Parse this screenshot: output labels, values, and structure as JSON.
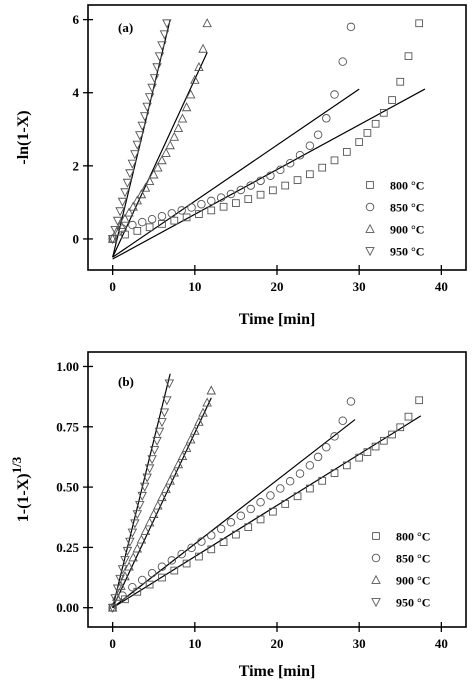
{
  "chart_data": [
    {
      "type": "scatter",
      "panel": "(a)",
      "xlabel": "Time [min]",
      "ylabel": "-ln(1-X)",
      "xlim": [
        -3,
        43
      ],
      "ylim": [
        -0.85,
        6.4
      ],
      "xticks": [
        "0",
        "10",
        "20",
        "30",
        "40"
      ],
      "yticks": [
        "0",
        "2",
        "4",
        "6"
      ],
      "xtick_values": [
        0,
        10,
        20,
        30,
        40
      ],
      "ytick_values": [
        0,
        2,
        4,
        6
      ],
      "legend_position": "bottom-right",
      "series": [
        {
          "name": "800 °C",
          "marker": "square",
          "x": [
            0,
            1.5,
            3,
            4.5,
            6,
            7.5,
            9,
            10.5,
            12,
            13.5,
            15,
            16.5,
            18,
            19.5,
            21,
            22.5,
            24,
            25.5,
            27,
            28.5,
            30,
            31,
            32,
            33,
            34,
            35,
            36,
            37.3
          ],
          "y": [
            0,
            0.12,
            0.22,
            0.32,
            0.41,
            0.5,
            0.59,
            0.68,
            0.78,
            0.88,
            0.98,
            1.09,
            1.21,
            1.33,
            1.46,
            1.61,
            1.77,
            1.95,
            2.15,
            2.38,
            2.65,
            2.9,
            3.15,
            3.45,
            3.8,
            4.3,
            5.0,
            5.9
          ],
          "fit": {
            "x": [
              0,
              38
            ],
            "y": [
              -0.55,
              4.1
            ]
          }
        },
        {
          "name": "850 °C",
          "marker": "circle",
          "x": [
            0,
            1.2,
            2.4,
            3.6,
            4.8,
            6,
            7.2,
            8.4,
            9.6,
            10.8,
            12,
            13.2,
            14.4,
            15.6,
            16.8,
            18,
            19.2,
            20.4,
            21.6,
            22.8,
            24,
            25,
            26,
            27,
            28,
            29
          ],
          "y": [
            0,
            0.28,
            0.38,
            0.46,
            0.54,
            0.62,
            0.7,
            0.78,
            0.86,
            0.95,
            1.04,
            1.13,
            1.23,
            1.34,
            1.46,
            1.59,
            1.73,
            1.89,
            2.07,
            2.29,
            2.55,
            2.85,
            3.3,
            3.95,
            4.85,
            5.8
          ],
          "fit": {
            "x": [
              0,
              30
            ],
            "y": [
              -0.5,
              4.1
            ]
          }
        },
        {
          "name": "900 °C",
          "marker": "triangle-up",
          "x": [
            0,
            0.5,
            1,
            1.5,
            2,
            2.5,
            3,
            3.5,
            4,
            4.5,
            5,
            5.5,
            6,
            6.5,
            7,
            7.5,
            8,
            8.5,
            9,
            9.5,
            10,
            10.5,
            11,
            11.5
          ],
          "y": [
            0,
            0.2,
            0.38,
            0.55,
            0.72,
            0.88,
            1.05,
            1.22,
            1.4,
            1.58,
            1.76,
            1.95,
            2.15,
            2.35,
            2.56,
            2.79,
            3.03,
            3.29,
            3.6,
            3.95,
            4.35,
            4.7,
            5.2,
            5.9
          ],
          "fit": {
            "x": [
              0,
              11.5
            ],
            "y": [
              -0.5,
              5.1
            ]
          }
        },
        {
          "name": "950 °C",
          "marker": "triangle-down",
          "x": [
            0,
            0.3,
            0.6,
            0.9,
            1.2,
            1.5,
            1.8,
            2.1,
            2.4,
            2.7,
            3,
            3.3,
            3.6,
            3.9,
            4.2,
            4.5,
            4.8,
            5.1,
            5.4,
            5.7,
            6,
            6.3,
            6.6
          ],
          "y": [
            0,
            0.25,
            0.5,
            0.76,
            1.02,
            1.28,
            1.54,
            1.8,
            2.06,
            2.32,
            2.58,
            2.84,
            3.1,
            3.36,
            3.62,
            3.88,
            4.14,
            4.4,
            4.7,
            5.0,
            5.3,
            5.6,
            5.9
          ],
          "fit": {
            "x": [
              0,
              7
            ],
            "y": [
              -0.5,
              6.0
            ]
          }
        }
      ]
    },
    {
      "type": "scatter",
      "panel": "(b)",
      "xlabel": "Time [min]",
      "ylabel": "1-(1-X)",
      "ylabel_superscript": "1/3",
      "xlim": [
        -3,
        43
      ],
      "ylim": [
        -0.08,
        1.06
      ],
      "xticks": [
        "0",
        "10",
        "20",
        "30",
        "40"
      ],
      "yticks": [
        "0.00",
        "0.25",
        "0.50",
        "0.75",
        "1.00"
      ],
      "xtick_values": [
        0,
        10,
        20,
        30,
        40
      ],
      "ytick_values": [
        0,
        0.25,
        0.5,
        0.75,
        1.0
      ],
      "legend_position": "bottom-right",
      "series": [
        {
          "name": "800 °C",
          "marker": "square",
          "x": [
            0,
            1.5,
            3,
            4.5,
            6,
            7.5,
            9,
            10.5,
            12,
            13.5,
            15,
            16.5,
            18,
            19.5,
            21,
            22.5,
            24,
            25.5,
            27,
            28.5,
            30,
            31,
            32,
            33,
            34,
            35,
            36,
            37.3
          ],
          "y": [
            0,
            0.035,
            0.066,
            0.096,
            0.125,
            0.154,
            0.183,
            0.212,
            0.242,
            0.272,
            0.303,
            0.334,
            0.366,
            0.398,
            0.43,
            0.462,
            0.494,
            0.526,
            0.558,
            0.59,
            0.622,
            0.645,
            0.668,
            0.692,
            0.718,
            0.748,
            0.792,
            0.86
          ],
          "fit": {
            "x": [
              0,
              37.5
            ],
            "y": [
              0,
              0.795
            ]
          }
        },
        {
          "name": "850 °C",
          "marker": "circle",
          "x": [
            0,
            1.2,
            2.4,
            3.6,
            4.8,
            6,
            7.2,
            8.4,
            9.6,
            10.8,
            12,
            13.2,
            14.4,
            15.6,
            16.8,
            18,
            19.2,
            20.4,
            21.6,
            22.8,
            24,
            25,
            26,
            27,
            28,
            29
          ],
          "y": [
            0,
            0.05,
            0.085,
            0.115,
            0.143,
            0.17,
            0.196,
            0.222,
            0.248,
            0.274,
            0.3,
            0.327,
            0.354,
            0.381,
            0.409,
            0.437,
            0.465,
            0.494,
            0.524,
            0.556,
            0.59,
            0.625,
            0.665,
            0.71,
            0.775,
            0.855
          ],
          "fit": {
            "x": [
              0,
              29.5
            ],
            "y": [
              0,
              0.78
            ]
          }
        },
        {
          "name": "900 °C",
          "marker": "triangle-up",
          "x": [
            0,
            0.5,
            1,
            1.5,
            2,
            2.5,
            3,
            3.5,
            4,
            4.5,
            5,
            5.5,
            6,
            6.5,
            7,
            7.5,
            8,
            8.5,
            9,
            9.5,
            10,
            10.5,
            11,
            11.5,
            12
          ],
          "y": [
            0,
            0.045,
            0.09,
            0.13,
            0.17,
            0.208,
            0.245,
            0.282,
            0.318,
            0.353,
            0.388,
            0.423,
            0.458,
            0.492,
            0.526,
            0.56,
            0.594,
            0.628,
            0.662,
            0.697,
            0.733,
            0.77,
            0.808,
            0.85,
            0.9
          ],
          "fit": {
            "x": [
              0,
              12
            ],
            "y": [
              0,
              0.87
            ]
          }
        },
        {
          "name": "950 °C",
          "marker": "triangle-down",
          "x": [
            0,
            0.3,
            0.6,
            0.9,
            1.2,
            1.5,
            1.8,
            2.1,
            2.4,
            2.7,
            3,
            3.3,
            3.6,
            3.9,
            4.2,
            4.5,
            4.8,
            5.1,
            5.4,
            5.7,
            6,
            6.3,
            6.6,
            6.9
          ],
          "y": [
            0,
            0.04,
            0.08,
            0.12,
            0.16,
            0.198,
            0.236,
            0.274,
            0.312,
            0.35,
            0.388,
            0.426,
            0.464,
            0.502,
            0.54,
            0.578,
            0.616,
            0.654,
            0.692,
            0.73,
            0.77,
            0.81,
            0.86,
            0.93
          ],
          "fit": {
            "x": [
              0,
              7
            ],
            "y": [
              0,
              0.97
            ]
          }
        }
      ]
    }
  ]
}
